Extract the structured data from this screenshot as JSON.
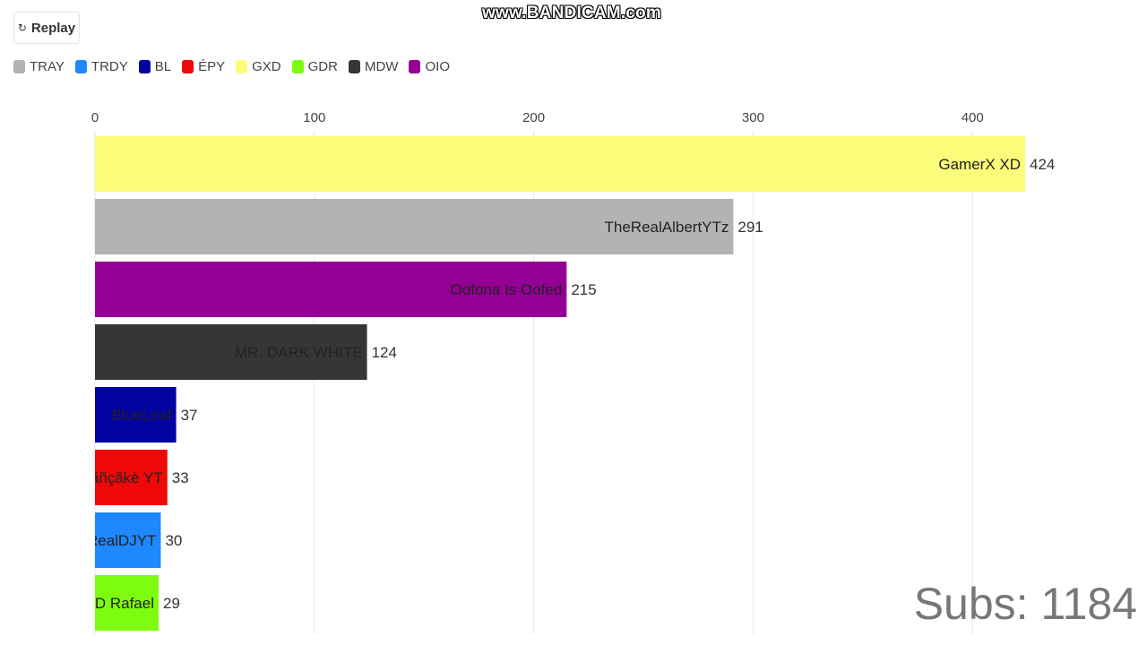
{
  "watermark": "www.BANDICAM.com",
  "replay": {
    "icon": "replay-icon",
    "glyph": "↻",
    "label": "Replay"
  },
  "legend": [
    {
      "label": "TRAY",
      "color": "#b3b3b3"
    },
    {
      "label": "TRDY",
      "color": "#1e88ff"
    },
    {
      "label": "BL",
      "color": "#0303a0"
    },
    {
      "label": "ÉPY",
      "color": "#ef0808"
    },
    {
      "label": "GXD",
      "color": "#fbfd7a"
    },
    {
      "label": "GDR",
      "color": "#7efc0f"
    },
    {
      "label": "MDW",
      "color": "#363636"
    },
    {
      "label": "OIO",
      "color": "#930093"
    }
  ],
  "counter": {
    "prefix": "Subs:",
    "value": "1184"
  },
  "chart_data": {
    "type": "bar",
    "orientation": "horizontal",
    "xlim": [
      0,
      424
    ],
    "ticks": [
      0,
      100,
      200,
      300,
      400
    ],
    "grid": true,
    "legend_position": "top-left",
    "bars": [
      {
        "name": "GamerX XD",
        "value": 424,
        "color": "#fbfd7a"
      },
      {
        "name": "TheRealAlbertYTz",
        "value": 291,
        "color": "#b3b3b3"
      },
      {
        "name": "Oofona Is Oofed",
        "value": 215,
        "color": "#930093"
      },
      {
        "name": "MR. DARK WHITE",
        "value": 124,
        "color": "#363636"
      },
      {
        "name": "BlueLeaf",
        "value": 37,
        "color": "#0303a0"
      },
      {
        "name": "Pãñçãkè YT",
        "value": 33,
        "color": "#ef0808"
      },
      {
        "name": "TheRealDJYT",
        "value": 30,
        "color": "#1e88ff"
      },
      {
        "name": "GD Rafael",
        "value": 29,
        "color": "#7efc0f"
      }
    ]
  }
}
